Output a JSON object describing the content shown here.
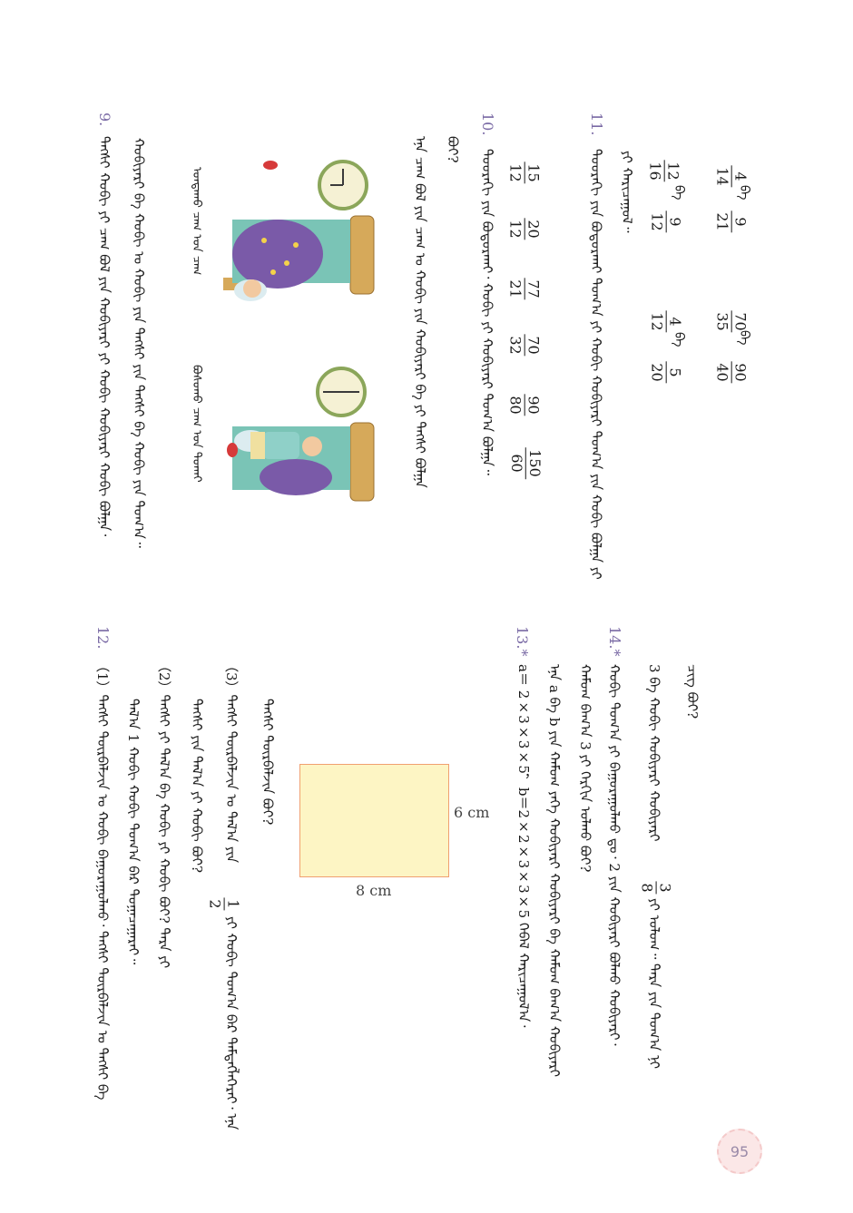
{
  "page_number": "95",
  "right_column": {
    "line_top_answer_tail": "ᠴᠢᠭ ᠪᠤᠢ?",
    "q13_number": "13.*",
    "q13_formula": "a＝ 2×3×3×5，b＝2×2×3×3×5 ᠭᠡᠪᠡᠯ ᠬᠠᠷᠢᠴᠠᠭᠤᠯ᠎ᠠ᠂",
    "q13_text": "ᠡᠨᠡ a ᠪᠠ b ᠶᠢᠨ ᠬᠠᠮᠤᠭ ᠶᠡᠬᠡ ᠬᠤᠪᠢᠶᠠᠷᠢ ᠬᠤᠪᠢᠶᠠᠷᠢ ᠪᠠ ᠬᠠᠮᠤᠭ ᠪᠠᠭ᠎ᠠ ᠬᠤᠪᠢᠶᠠᠷᠢ",
    "q14_number": "14.*",
    "q14_text_line1": "ᠬᠤᠪᠢ ᠲᠤᠭ᠎ᠠ ᠶᠢ ᠪᠠᠭᠤᠷᠠᠭᠤᠯᠬᠤ ᠳᠤ᠂ 2 ᠶᠢᠨ ᠬᠤᠪᠢᠶᠠᠷᠢ ᠪᠤᠯᠬᠤ ᠬᠤᠪᠢᠶᠠᠷᠢ᠂",
    "q14_text_line2": "ᠬᠠᠮᠤᠭ ᠪᠠᠭ᠎ᠠ 3 ᠶᠢ ᠬᠡᠷᠬᠢᠨ ᠣᠯᠬᠤ ᠪᠤᠢ?",
    "q14_text_line3": "3 ᠪᠠ ᠬᠤᠪᠢ ᠬᠤᠪᠢᠶᠠᠷᠢ ᠬᠤᠪᠢᠶᠠᠷᠢ",
    "q14_fraction": {
      "num": "3",
      "den": "8"
    },
    "q14_text_line3_tail": "ᠶᠢ ᠣᠯᠤᠭ᠃ ᠲᠡᠷᠡ ᠶᠢᠨ ᠲᠤᠭ᠎ᠠ ᠨᠢ",
    "rect_width": "8 cm",
    "rect_height": "6 cm",
    "rect_caption": "ᠲᠡᠭᠰᠢ ᠳᠦᠷᠪᠡᠯᠵᠢᠨ ᠪᠤᠢ?",
    "q12_number": "12.",
    "q12_1": "（1）ᠲᠡᠭᠰᠢ ᠳᠦᠷᠪᠡᠯᠵᠢᠨ ᠤ ᠬᠤᠪᠢ ᠪᠠᠭᠤᠷᠠᠭᠤᠯᠬᠤ᠂ ᠲᠡᠭᠰᠢ ᠳᠦᠷᠪᠡᠯᠵᠢᠨ ᠤ ᠲᠡᠭᠰᠢ ᠪᠠ",
    "q12_1b": "ᠲᠡᠭᠰᠢ ᠶᠢᠨ ᠲᠠᠯ᠎ᠠ ᠶᠢ ᠬᠤᠪᠢ ᠪᠤᠢ?",
    "q12_2": "（2）ᠲᠡᠭᠰᠢ ᠶᠢ ᠲᠠᠯ᠎ᠠ ᠪᠠ ᠬᠤᠪᠢ ᠶᠢ ᠬᠤᠪᠢ ᠪᠤᠢ? ᠲᠡᠷᠡ ᠶᠢ",
    "q12_2b": "ᠲᠠᠯ᠎ᠠ 1 ᠬᠤᠪᠢ ᠬᠤᠪᠢ ᠲᠤᠭ᠎ᠠ ᠪᠠᠷ ᠲᠣᠭᠠᠴᠠᠭᠠᠷᠠᠢ᠃",
    "q12_3": "（3）ᠲᠡᠭᠰᠢ ᠳᠦᠷᠪᠡᠯᠵᠢᠨ ᠤ ᠲᠠᠯ᠎ᠠ ᠶᠢᠨ",
    "q12_3_fraction": {
      "num": "1",
      "den": "2"
    },
    "q12_3_tail": "ᠶᠢ ᠬᠤᠪᠢ ᠲᠤᠭ᠎ᠠ ᠪᠠᠷ ᠲᠡᠮᠳᠡᠭᠯᠡᠭᠡᠷᠡᠢ᠂ ᠡᠨᠡ"
  },
  "left_column": {
    "fractions_row1": [
      {
        "num": "4",
        "den": "14"
      },
      {
        "num": "9",
        "den": "21"
      },
      {
        "num": "70",
        "den": "35"
      },
      {
        "num": "90",
        "den": "40"
      }
    ],
    "fractions_row2": [
      {
        "num": "12",
        "den": "16"
      },
      {
        "num": "9",
        "den": "12"
      },
      {
        "num": "4",
        "den": "12"
      },
      {
        "num": "5",
        "den": "20"
      }
    ],
    "conj": "ᠪᠠ",
    "row_tail": "ᠶᠢ ᠬᠠᠷᠢᠴᠠᠭᠤᠯ᠃",
    "q11_number": "11.",
    "q11_text": "ᠳᠤᠤᠷᠠᠬᠢ ᠶᠢᠨ ᠪᠤᠲᠤᠷᠬᠠᠢ ᠲᠤᠭ᠎ᠠ ᠶᠢ ᠬᠤᠪᠢ ᠬᠤᠪᠢᠶᠠᠷᠢ ᠲᠤᠭ᠎ᠠ ᠶᠢᠨ ᠬᠤᠪᠢ ᠪᠤᠯᠭᠠ ᠶᠢ",
    "fractions_row3": [
      {
        "num": "15",
        "den": "12"
      },
      {
        "num": "20",
        "den": "12"
      },
      {
        "num": "77",
        "den": "21"
      },
      {
        "num": "70",
        "den": "32"
      },
      {
        "num": "90",
        "den": "80"
      },
      {
        "num": "150",
        "den": "60"
      }
    ],
    "q10_number": "10.",
    "q10_text": "ᠳᠤᠤᠷᠠᠬᠢ ᠶᠢᠨ ᠪᠤᠲᠤᠷᠬᠠᠢ᠂ ᠬᠤᠪᠢ ᠶᠢ ᠬᠤᠪᠢᠶᠠᠷᠢ ᠲᠤᠭ᠎ᠠ ᠪᠤᠯᠭᠠ᠃",
    "q10_line2": "ᠡᠨᠡ ᠴᠠᠭ ᠪᠤᠯ ᠶᠢᠨ ᠴᠠᠭ ᠤ ᠬᠤᠪᠢ ᠶᠢᠨ ᠬᠤᠪᠢᠶᠠᠷᠢ ᠪᠠ ᠶᠢ ᠲᠡᠭᠰᠢ ᠪᠤᠯᠭᠠ",
    "q10_line3": "ᠪᠤᠢ?",
    "caption_sleep": "ᠤᠨᠲᠠᠬᠤ ᠴᠠᠭ ᠤᠨ ᠴᠠᠭ",
    "caption_wake": "ᠪᠤᠰᠤᠬᠤ ᠴᠠᠭ ᠤᠨ ᠲᠤᠬᠠᠢ",
    "q9_number": "9.",
    "q9_text": "ᠲᠡᠭᠰᠢ ᠬᠤᠪᠢ ᠶᠢ ᠴᠠᠭ ᠪᠤᠯ ᠶᠢᠨ ᠬᠤᠪᠢᠶᠠᠷᠢ ᠶᠢ ᠬᠤᠪᠢ ᠬᠤᠪᠢᠶᠠᠷᠢ ᠬᠤᠪᠢ ᠪᠤᠯᠭᠠ᠂",
    "q9_line2": "ᠬᠤᠪᠢᠶᠠᠷᠢ ᠪᠠ ᠬᠤᠪᠢ ᠤ ᠬᠤᠪᠢ ᠶᠢᠨ ᠲᠡᠭᠰᠢ ᠶᠢᠨ ᠲᠡᠭᠰᠢ ᠪᠠ ᠬᠤᠪᠢ ᠶᠢᠨ ᠲᠤᠭ᠎ᠠ᠃"
  },
  "colors": {
    "question_number": "#7a6aa5",
    "rect_fill": "#fdf5c4",
    "rect_border": "#f0a070"
  }
}
